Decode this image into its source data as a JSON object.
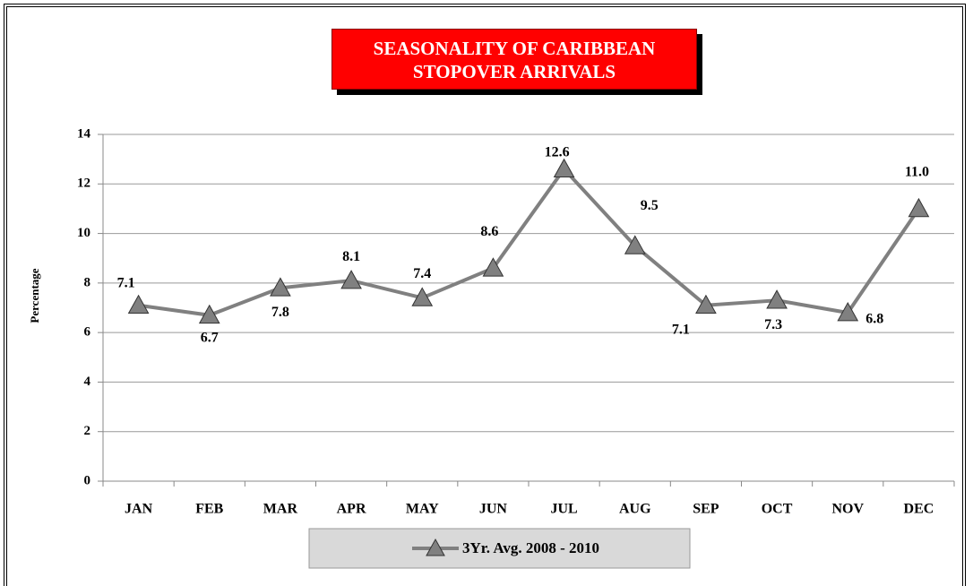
{
  "chart_data": {
    "type": "line",
    "title": "SEASONALITY OF CARIBBEAN STOPOVER ARRIVALS",
    "y_label": "Percentage",
    "categories": [
      "JAN",
      "FEB",
      "MAR",
      "APR",
      "MAY",
      "JUN",
      "JUL",
      "AUG",
      "SEP",
      "OCT",
      "NOV",
      "DEC"
    ],
    "series": [
      {
        "name": "3Yr. Avg. 2008 - 2010",
        "color": "#808080",
        "values": [
          7.1,
          6.7,
          7.8,
          8.1,
          7.4,
          8.6,
          12.6,
          9.5,
          7.1,
          7.3,
          6.8,
          11.0
        ],
        "value_labels": [
          "7.1",
          "6.7",
          "7.8",
          "8.1",
          "7.4",
          "8.6",
          "12.6",
          "9.5",
          "7.1",
          "7.3",
          "6.8",
          "11.0"
        ]
      }
    ],
    "ylim": [
      0,
      14
    ],
    "yticks": [
      0,
      2,
      4,
      6,
      8,
      10,
      12,
      14
    ],
    "grid": true,
    "legend": "bottom"
  }
}
